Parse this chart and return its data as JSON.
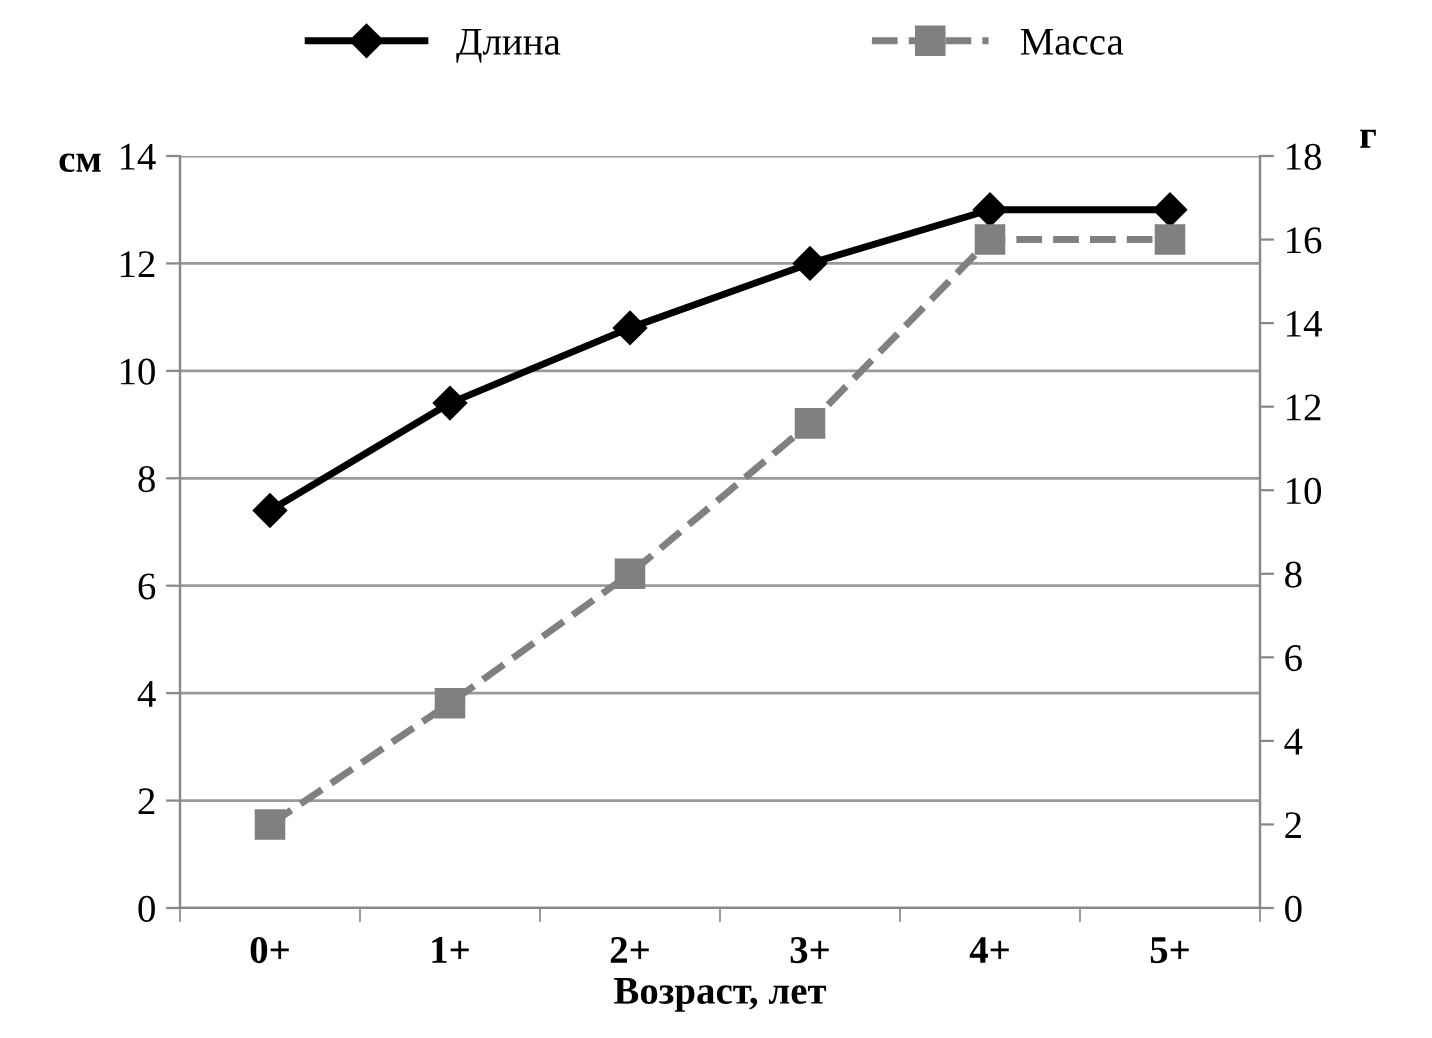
{
  "chart_data": {
    "type": "line",
    "xlabel": "Возраст, лет",
    "ylabel": "см",
    "y2label": "г",
    "categories": [
      "0+",
      "1+",
      "2+",
      "3+",
      "4+",
      "5+"
    ],
    "series": [
      {
        "name": "Длина",
        "color": "#000000",
        "marker": "diamond",
        "line_style": "solid",
        "values": [
          7.4,
          9.4,
          10.8,
          12.0,
          13.0,
          13.0
        ]
      },
      {
        "name": "Масса",
        "color": "#808080",
        "marker": "square",
        "line_style": "dashed",
        "axis": "y2",
        "values": [
          2.0,
          4.9,
          8.0,
          11.6,
          16.0,
          16.0
        ]
      }
    ],
    "ylim": [
      0,
      14
    ],
    "yticks": [
      0,
      2,
      4,
      6,
      8,
      10,
      12,
      14
    ],
    "y2lim": [
      0,
      18
    ],
    "y2ticks": [
      0,
      2,
      4,
      6,
      8,
      10,
      12,
      14,
      16,
      18
    ],
    "grid": "y",
    "legend": "top"
  }
}
